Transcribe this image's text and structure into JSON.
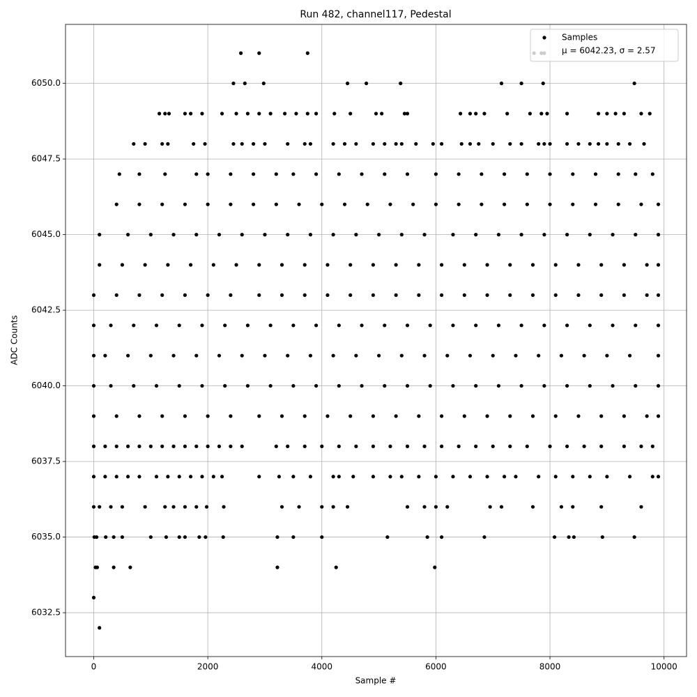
{
  "chart_data": {
    "type": "scatter",
    "title": "Run 482, channel117, Pedestal",
    "xlabel": "Sample #",
    "ylabel": "ADC Counts",
    "annotation": "μ = 6042.23, σ = 2.57",
    "legend": "upper right",
    "grid": true,
    "xlim": [
      -495,
      10395
    ],
    "xticks": [
      0,
      2000,
      4000,
      6000,
      8000,
      10000
    ],
    "ylim": [
      6031.05,
      6051.95
    ],
    "yticks": [
      6032.5,
      {
        "value": 6035,
        "label": "6035.0"
      },
      6037.5,
      {
        "value": 6040,
        "label": "6040.0"
      },
      6042.5,
      {
        "value": 6045,
        "label": "6045.0"
      },
      6047.5,
      {
        "value": 6050,
        "label": "6050.0"
      }
    ],
    "series": [
      {
        "name": "Samples",
        "color": "#000000",
        "x": [
          100,
          0,
          30,
          60,
          350,
          640,
          3220,
          4250,
          5980,
          10,
          50,
          210,
          350,
          500,
          1000,
          1270,
          1500,
          1600,
          1850,
          1960,
          2270,
          3220,
          3500,
          4000,
          5150,
          5850,
          6100,
          6850,
          8080,
          8330,
          8420,
          8920,
          9480,
          0,
          100,
          300,
          500,
          900,
          1250,
          1400,
          1600,
          1800,
          1980,
          2280,
          3300,
          3600,
          4000,
          4200,
          4450,
          5500,
          5800,
          6000,
          6200,
          6950,
          7150,
          7700,
          8200,
          8400,
          8900,
          9600,
          0,
          200,
          400,
          600,
          800,
          1100,
          1300,
          1500,
          1700,
          1900,
          2100,
          2250,
          2900,
          3250,
          3500,
          3800,
          4200,
          4300,
          4550,
          4900,
          5200,
          5400,
          5700,
          6000,
          6300,
          6600,
          6900,
          7200,
          7400,
          7800,
          8100,
          8400,
          8700,
          9000,
          9400,
          9800,
          9900,
          0,
          200,
          400,
          600,
          800,
          1000,
          1200,
          1400,
          1600,
          1800,
          2000,
          2200,
          2400,
          2600,
          3200,
          3400,
          3700,
          4000,
          4300,
          4600,
          4900,
          5200,
          5500,
          5800,
          6100,
          6400,
          6700,
          7000,
          7300,
          7600,
          8000,
          8300,
          8600,
          8900,
          9300,
          9600,
          9800,
          0,
          400,
          800,
          1200,
          1600,
          2000,
          2400,
          2900,
          3300,
          3700,
          4100,
          4500,
          4900,
          5300,
          5700,
          6100,
          6500,
          6900,
          7300,
          7700,
          8100,
          8500,
          8900,
          9300,
          9700,
          9900,
          0,
          300,
          700,
          1100,
          1500,
          1900,
          2300,
          2700,
          3100,
          3500,
          3900,
          4300,
          4700,
          5100,
          5500,
          5900,
          6300,
          6700,
          7100,
          7500,
          7900,
          8300,
          8700,
          9100,
          9500,
          9900,
          0,
          200,
          600,
          1000,
          1400,
          1800,
          2200,
          2600,
          3000,
          3400,
          3800,
          4200,
          4600,
          5000,
          5400,
          5800,
          6200,
          6600,
          7000,
          7400,
          7800,
          8200,
          8600,
          9000,
          9400,
          9900,
          0,
          300,
          700,
          1100,
          1500,
          1900,
          2300,
          2700,
          3100,
          3500,
          3900,
          4300,
          4700,
          5100,
          5500,
          5900,
          6300,
          6700,
          7100,
          7500,
          7900,
          8300,
          8700,
          9100,
          9500,
          9900,
          0,
          400,
          800,
          1200,
          1600,
          2000,
          2400,
          2900,
          3300,
          3700,
          4100,
          4500,
          4900,
          5300,
          5700,
          6100,
          6500,
          6900,
          7300,
          7700,
          8100,
          8500,
          8900,
          9300,
          9700,
          9900,
          100,
          500,
          900,
          1300,
          1700,
          2100,
          2500,
          2900,
          3300,
          3700,
          4100,
          4500,
          4900,
          5300,
          5700,
          6100,
          6500,
          6900,
          7300,
          7700,
          8100,
          8500,
          8900,
          9300,
          9700,
          9900,
          100,
          600,
          1000,
          1400,
          1800,
          2200,
          2600,
          3000,
          3400,
          3800,
          4200,
          4600,
          5000,
          5400,
          5800,
          6300,
          6700,
          7100,
          7500,
          7900,
          8300,
          8700,
          9100,
          9500,
          9900,
          400,
          800,
          1200,
          1600,
          2000,
          2400,
          2800,
          3200,
          3600,
          4000,
          4400,
          4800,
          5200,
          5600,
          6000,
          6400,
          6800,
          7200,
          7600,
          8000,
          8400,
          8800,
          9200,
          9600,
          9900,
          450,
          800,
          1250,
          1800,
          2000,
          2400,
          2800,
          3200,
          3500,
          3900,
          4300,
          4700,
          5100,
          5500,
          6000,
          6400,
          6800,
          7200,
          7600,
          8000,
          8400,
          8800,
          9200,
          9500,
          9800,
          700,
          900,
          1200,
          1300,
          1750,
          1950,
          2450,
          2600,
          2800,
          3000,
          3400,
          3700,
          3800,
          4200,
          4400,
          4600,
          4900,
          5100,
          5300,
          5400,
          5650,
          5950,
          6100,
          6450,
          6600,
          6750,
          7000,
          7300,
          7500,
          7800,
          7900,
          8000,
          8300,
          8500,
          8700,
          8850,
          9000,
          9200,
          9400,
          9650,
          1150,
          1250,
          1320,
          1600,
          1700,
          1900,
          2250,
          2500,
          2700,
          2900,
          3100,
          3350,
          3550,
          3750,
          3900,
          4220,
          4500,
          4950,
          5050,
          5450,
          5500,
          6430,
          6600,
          6700,
          6850,
          7250,
          7650,
          7850,
          7950,
          8300,
          8850,
          9000,
          9150,
          9300,
          9600,
          9750,
          2450,
          2650,
          2980,
          4450,
          4780,
          5380,
          7150,
          7500,
          7880,
          9480,
          2580,
          2900,
          3750,
          7720,
          7850,
          7900
        ],
        "values": [
          6032,
          6033,
          6034,
          6034,
          6034,
          6034,
          6034,
          6034,
          6034,
          6035,
          6035,
          6035,
          6035,
          6035,
          6035,
          6035,
          6035,
          6035,
          6035,
          6035,
          6035,
          6035,
          6035,
          6035,
          6035,
          6035,
          6035,
          6035,
          6035,
          6035,
          6035,
          6035,
          6035,
          6036,
          6036,
          6036,
          6036,
          6036,
          6036,
          6036,
          6036,
          6036,
          6036,
          6036,
          6036,
          6036,
          6036,
          6036,
          6036,
          6036,
          6036,
          6036,
          6036,
          6036,
          6036,
          6036,
          6036,
          6036,
          6036,
          6036,
          6037,
          6037,
          6037,
          6037,
          6037,
          6037,
          6037,
          6037,
          6037,
          6037,
          6037,
          6037,
          6037,
          6037,
          6037,
          6037,
          6037,
          6037,
          6037,
          6037,
          6037,
          6037,
          6037,
          6037,
          6037,
          6037,
          6037,
          6037,
          6037,
          6037,
          6037,
          6037,
          6037,
          6037,
          6037,
          6037,
          6037,
          6038,
          6038,
          6038,
          6038,
          6038,
          6038,
          6038,
          6038,
          6038,
          6038,
          6038,
          6038,
          6038,
          6038,
          6038,
          6038,
          6038,
          6038,
          6038,
          6038,
          6038,
          6038,
          6038,
          6038,
          6038,
          6038,
          6038,
          6038,
          6038,
          6038,
          6038,
          6038,
          6038,
          6038,
          6038,
          6038,
          6038,
          6039,
          6039,
          6039,
          6039,
          6039,
          6039,
          6039,
          6039,
          6039,
          6039,
          6039,
          6039,
          6039,
          6039,
          6039,
          6039,
          6039,
          6039,
          6039,
          6039,
          6039,
          6039,
          6039,
          6039,
          6039,
          6039,
          6040,
          6040,
          6040,
          6040,
          6040,
          6040,
          6040,
          6040,
          6040,
          6040,
          6040,
          6040,
          6040,
          6040,
          6040,
          6040,
          6040,
          6040,
          6040,
          6040,
          6040,
          6040,
          6040,
          6040,
          6040,
          6040,
          6041,
          6041,
          6041,
          6041,
          6041,
          6041,
          6041,
          6041,
          6041,
          6041,
          6041,
          6041,
          6041,
          6041,
          6041,
          6041,
          6041,
          6041,
          6041,
          6041,
          6041,
          6041,
          6041,
          6041,
          6041,
          6041,
          6042,
          6042,
          6042,
          6042,
          6042,
          6042,
          6042,
          6042,
          6042,
          6042,
          6042,
          6042,
          6042,
          6042,
          6042,
          6042,
          6042,
          6042,
          6042,
          6042,
          6042,
          6042,
          6042,
          6042,
          6042,
          6042,
          6043,
          6043,
          6043,
          6043,
          6043,
          6043,
          6043,
          6043,
          6043,
          6043,
          6043,
          6043,
          6043,
          6043,
          6043,
          6043,
          6043,
          6043,
          6043,
          6043,
          6043,
          6043,
          6043,
          6043,
          6043,
          6043,
          6044,
          6044,
          6044,
          6044,
          6044,
          6044,
          6044,
          6044,
          6044,
          6044,
          6044,
          6044,
          6044,
          6044,
          6044,
          6044,
          6044,
          6044,
          6044,
          6044,
          6044,
          6044,
          6044,
          6044,
          6044,
          6044,
          6045,
          6045,
          6045,
          6045,
          6045,
          6045,
          6045,
          6045,
          6045,
          6045,
          6045,
          6045,
          6045,
          6045,
          6045,
          6045,
          6045,
          6045,
          6045,
          6045,
          6045,
          6045,
          6045,
          6045,
          6045,
          6046,
          6046,
          6046,
          6046,
          6046,
          6046,
          6046,
          6046,
          6046,
          6046,
          6046,
          6046,
          6046,
          6046,
          6046,
          6046,
          6046,
          6046,
          6046,
          6046,
          6046,
          6046,
          6046,
          6046,
          6046,
          6047,
          6047,
          6047,
          6047,
          6047,
          6047,
          6047,
          6047,
          6047,
          6047,
          6047,
          6047,
          6047,
          6047,
          6047,
          6047,
          6047,
          6047,
          6047,
          6047,
          6047,
          6047,
          6047,
          6047,
          6047,
          6048,
          6048,
          6048,
          6048,
          6048,
          6048,
          6048,
          6048,
          6048,
          6048,
          6048,
          6048,
          6048,
          6048,
          6048,
          6048,
          6048,
          6048,
          6048,
          6048,
          6048,
          6048,
          6048,
          6048,
          6048,
          6048,
          6048,
          6048,
          6048,
          6048,
          6048,
          6048,
          6048,
          6048,
          6048,
          6048,
          6048,
          6048,
          6048,
          6048,
          6049,
          6049,
          6049,
          6049,
          6049,
          6049,
          6049,
          6049,
          6049,
          6049,
          6049,
          6049,
          6049,
          6049,
          6049,
          6049,
          6049,
          6049,
          6049,
          6049,
          6049,
          6049,
          6049,
          6049,
          6049,
          6049,
          6049,
          6049,
          6049,
          6049,
          6049,
          6049,
          6049,
          6049,
          6049,
          6049,
          6050,
          6050,
          6050,
          6050,
          6050,
          6050,
          6050,
          6050,
          6050,
          6050,
          6051,
          6051,
          6051,
          6051,
          6051,
          6051
        ]
      }
    ]
  }
}
